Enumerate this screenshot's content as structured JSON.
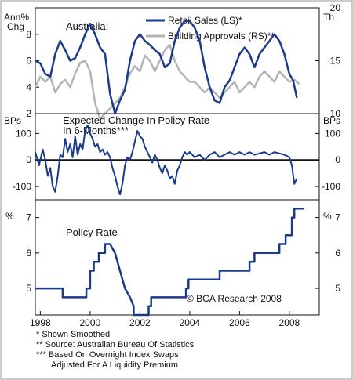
{
  "chart_data": [
    {
      "type": "line",
      "title": "Australia:",
      "left_unit": "Ann%\nChg",
      "right_unit": "Th",
      "xlim": [
        1997.8,
        2009.2
      ],
      "ylim_left": [
        2,
        10
      ],
      "ylim_right": [
        10,
        20
      ],
      "left_ticks": [
        "2",
        "4",
        "6",
        "8"
      ],
      "right_ticks": [
        "10",
        "15",
        "20"
      ],
      "legend_position": "top-right",
      "series": [
        {
          "name": "Retail Sales (LS)*",
          "axis": "left",
          "color": "#1a3a8a",
          "x": [
            1997.8,
            1998.0,
            1998.2,
            1998.4,
            1998.6,
            1998.8,
            1999.0,
            1999.2,
            1999.4,
            1999.6,
            1999.8,
            2000.0,
            2000.2,
            2000.4,
            2000.6,
            2000.8,
            2001.0,
            2001.2,
            2001.4,
            2001.6,
            2001.8,
            2002.0,
            2002.2,
            2002.4,
            2002.6,
            2002.8,
            2003.0,
            2003.2,
            2003.4,
            2003.6,
            2003.8,
            2004.0,
            2004.2,
            2004.4,
            2004.6,
            2004.8,
            2005.0,
            2005.2,
            2005.4,
            2005.6,
            2005.8,
            2006.0,
            2006.2,
            2006.4,
            2006.6,
            2006.8,
            2007.0,
            2007.2,
            2007.4,
            2007.6,
            2007.8,
            2008.0,
            2008.15,
            2008.3
          ],
          "y": [
            6.0,
            5.8,
            5.0,
            4.8,
            6.5,
            7.5,
            6.8,
            6.0,
            6.2,
            7.0,
            8.0,
            8.8,
            8.0,
            7.0,
            6.5,
            3.5,
            2.0,
            3.0,
            3.8,
            6.0,
            7.5,
            8.0,
            7.5,
            7.2,
            6.8,
            6.5,
            5.5,
            5.8,
            7.5,
            8.5,
            9.0,
            9.0,
            8.5,
            7.5,
            5.5,
            4.0,
            3.0,
            2.8,
            4.0,
            4.5,
            5.5,
            6.5,
            7.0,
            6.5,
            5.5,
            6.5,
            7.0,
            7.5,
            8.0,
            7.5,
            6.5,
            5.0,
            4.5,
            3.2
          ]
        },
        {
          "name": "Building Approvals (RS)**",
          "axis": "right",
          "color": "#b4b4b4",
          "x": [
            1997.8,
            1998.0,
            1998.2,
            1998.4,
            1998.6,
            1998.8,
            1999.0,
            1999.2,
            1999.4,
            1999.6,
            1999.8,
            2000.0,
            2000.2,
            2000.4,
            2000.6,
            2000.8,
            2001.0,
            2001.2,
            2001.4,
            2001.6,
            2001.8,
            2002.0,
            2002.2,
            2002.4,
            2002.6,
            2002.8,
            2003.0,
            2003.2,
            2003.4,
            2003.6,
            2003.8,
            2004.0,
            2004.2,
            2004.4,
            2004.6,
            2004.8,
            2005.0,
            2005.2,
            2005.4,
            2005.6,
            2005.8,
            2006.0,
            2006.2,
            2006.4,
            2006.6,
            2006.8,
            2007.0,
            2007.2,
            2007.4,
            2007.6,
            2007.8,
            2008.0,
            2008.2,
            2008.4
          ],
          "y": [
            12.5,
            13.5,
            13.0,
            13.5,
            12.0,
            12.8,
            13.2,
            12.5,
            13.8,
            14.8,
            15.0,
            14.0,
            11.0,
            9.5,
            10.0,
            10.5,
            11.0,
            11.5,
            12.5,
            13.8,
            14.5,
            14.0,
            15.5,
            15.0,
            14.0,
            15.0,
            16.0,
            16.5,
            15.0,
            14.0,
            13.5,
            13.0,
            13.0,
            12.5,
            12.0,
            12.5,
            12.0,
            11.5,
            12.0,
            12.5,
            13.0,
            12.0,
            12.5,
            13.0,
            12.5,
            13.5,
            14.0,
            13.5,
            13.0,
            14.0,
            13.5,
            13.0,
            13.2,
            12.8
          ]
        }
      ]
    },
    {
      "type": "line",
      "title": "Expected Change In Policy Rate\nIn 6-Months***",
      "left_unit": "BPs",
      "right_unit": "BPs",
      "xlim": [
        1997.8,
        2009.2
      ],
      "ylim": [
        -150,
        175
      ],
      "ticks": [
        "-100",
        "0",
        "100"
      ],
      "zero_line": true,
      "series": [
        {
          "name": "",
          "color": "#1a3a8a",
          "x": [
            1997.8,
            1997.95,
            1998.1,
            1998.2,
            1998.3,
            1998.4,
            1998.5,
            1998.6,
            1998.7,
            1998.8,
            1998.9,
            1999.0,
            1999.1,
            1999.2,
            1999.3,
            1999.4,
            1999.5,
            1999.6,
            1999.7,
            1999.8,
            1999.9,
            2000.0,
            2000.1,
            2000.2,
            2000.3,
            2000.4,
            2000.5,
            2000.6,
            2000.7,
            2000.8,
            2000.9,
            2001.0,
            2001.1,
            2001.2,
            2001.3,
            2001.4,
            2001.5,
            2001.6,
            2001.7,
            2001.8,
            2001.9,
            2002.0,
            2002.1,
            2002.2,
            2002.3,
            2002.4,
            2002.5,
            2002.6,
            2002.7,
            2002.8,
            2002.9,
            2003.0,
            2003.1,
            2003.2,
            2003.3,
            2003.4,
            2003.5,
            2003.6,
            2003.7,
            2003.8,
            2003.9,
            2004.0,
            2004.2,
            2004.4,
            2004.6,
            2004.8,
            2005.0,
            2005.2,
            2005.4,
            2005.6,
            2005.8,
            2006.0,
            2006.2,
            2006.4,
            2006.6,
            2006.8,
            2007.0,
            2007.2,
            2007.4,
            2007.6,
            2007.8,
            2008.0,
            2008.1,
            2008.2,
            2008.3
          ],
          "y": [
            30,
            -20,
            40,
            0,
            -60,
            -30,
            -100,
            -120,
            -60,
            20,
            10,
            80,
            30,
            60,
            10,
            90,
            20,
            60,
            40,
            110,
            130,
            100,
            80,
            50,
            60,
            30,
            40,
            20,
            30,
            10,
            -30,
            -60,
            -100,
            -130,
            -90,
            -20,
            10,
            0,
            30,
            70,
            110,
            90,
            80,
            50,
            30,
            10,
            -10,
            20,
            0,
            -30,
            -50,
            -20,
            -40,
            -70,
            -60,
            -90,
            -40,
            -20,
            10,
            30,
            20,
            30,
            10,
            20,
            0,
            20,
            30,
            10,
            20,
            30,
            20,
            30,
            20,
            30,
            20,
            25,
            30,
            20,
            30,
            25,
            20,
            10,
            -20,
            -90,
            -70
          ]
        }
      ]
    },
    {
      "type": "line",
      "title": "Policy Rate",
      "left_unit": "%",
      "right_unit": "%",
      "xlim": [
        1997.8,
        2009.2
      ],
      "ylim": [
        4.25,
        7.5
      ],
      "ticks": [
        "5",
        "6",
        "7"
      ],
      "annotation": "© BCA Research 2008",
      "series": [
        {
          "name": "",
          "color": "#1a3a8a",
          "x": [
            1997.8,
            1998.9,
            1998.9,
            1999.85,
            1999.85,
            2000.0,
            2000.0,
            2000.15,
            2000.15,
            2000.35,
            2000.35,
            2000.6,
            2000.6,
            2000.8,
            2001.0,
            2001.2,
            2001.4,
            2001.6,
            2001.75,
            2001.75,
            2002.35,
            2002.35,
            2002.45,
            2002.45,
            2003.85,
            2003.85,
            2003.95,
            2003.95,
            2005.2,
            2005.2,
            2006.4,
            2006.4,
            2006.6,
            2006.6,
            2007.6,
            2007.6,
            2007.85,
            2007.85,
            2008.1,
            2008.1,
            2008.2,
            2008.2,
            2008.6
          ],
          "y": [
            5.0,
            5.0,
            4.75,
            4.75,
            5.0,
            5.0,
            5.5,
            5.5,
            5.75,
            5.75,
            6.0,
            6.0,
            6.25,
            6.25,
            6.0,
            5.5,
            5.0,
            4.75,
            4.5,
            4.25,
            4.25,
            4.5,
            4.5,
            4.75,
            4.75,
            5.0,
            5.0,
            5.25,
            5.25,
            5.5,
            5.5,
            5.75,
            5.75,
            6.0,
            6.0,
            6.25,
            6.25,
            6.5,
            6.5,
            7.0,
            7.0,
            7.25,
            7.25
          ]
        }
      ]
    }
  ],
  "x_ticks": [
    "1998",
    "2000",
    "2002",
    "2004",
    "2006",
    "2008"
  ],
  "footnotes": [
    "*  Shown Smoothed",
    "**  Source: Australian Bureau Of Statistics",
    "*** Based On Overnight Index Swaps",
    "Adjusted For A Liquidity Premium"
  ]
}
